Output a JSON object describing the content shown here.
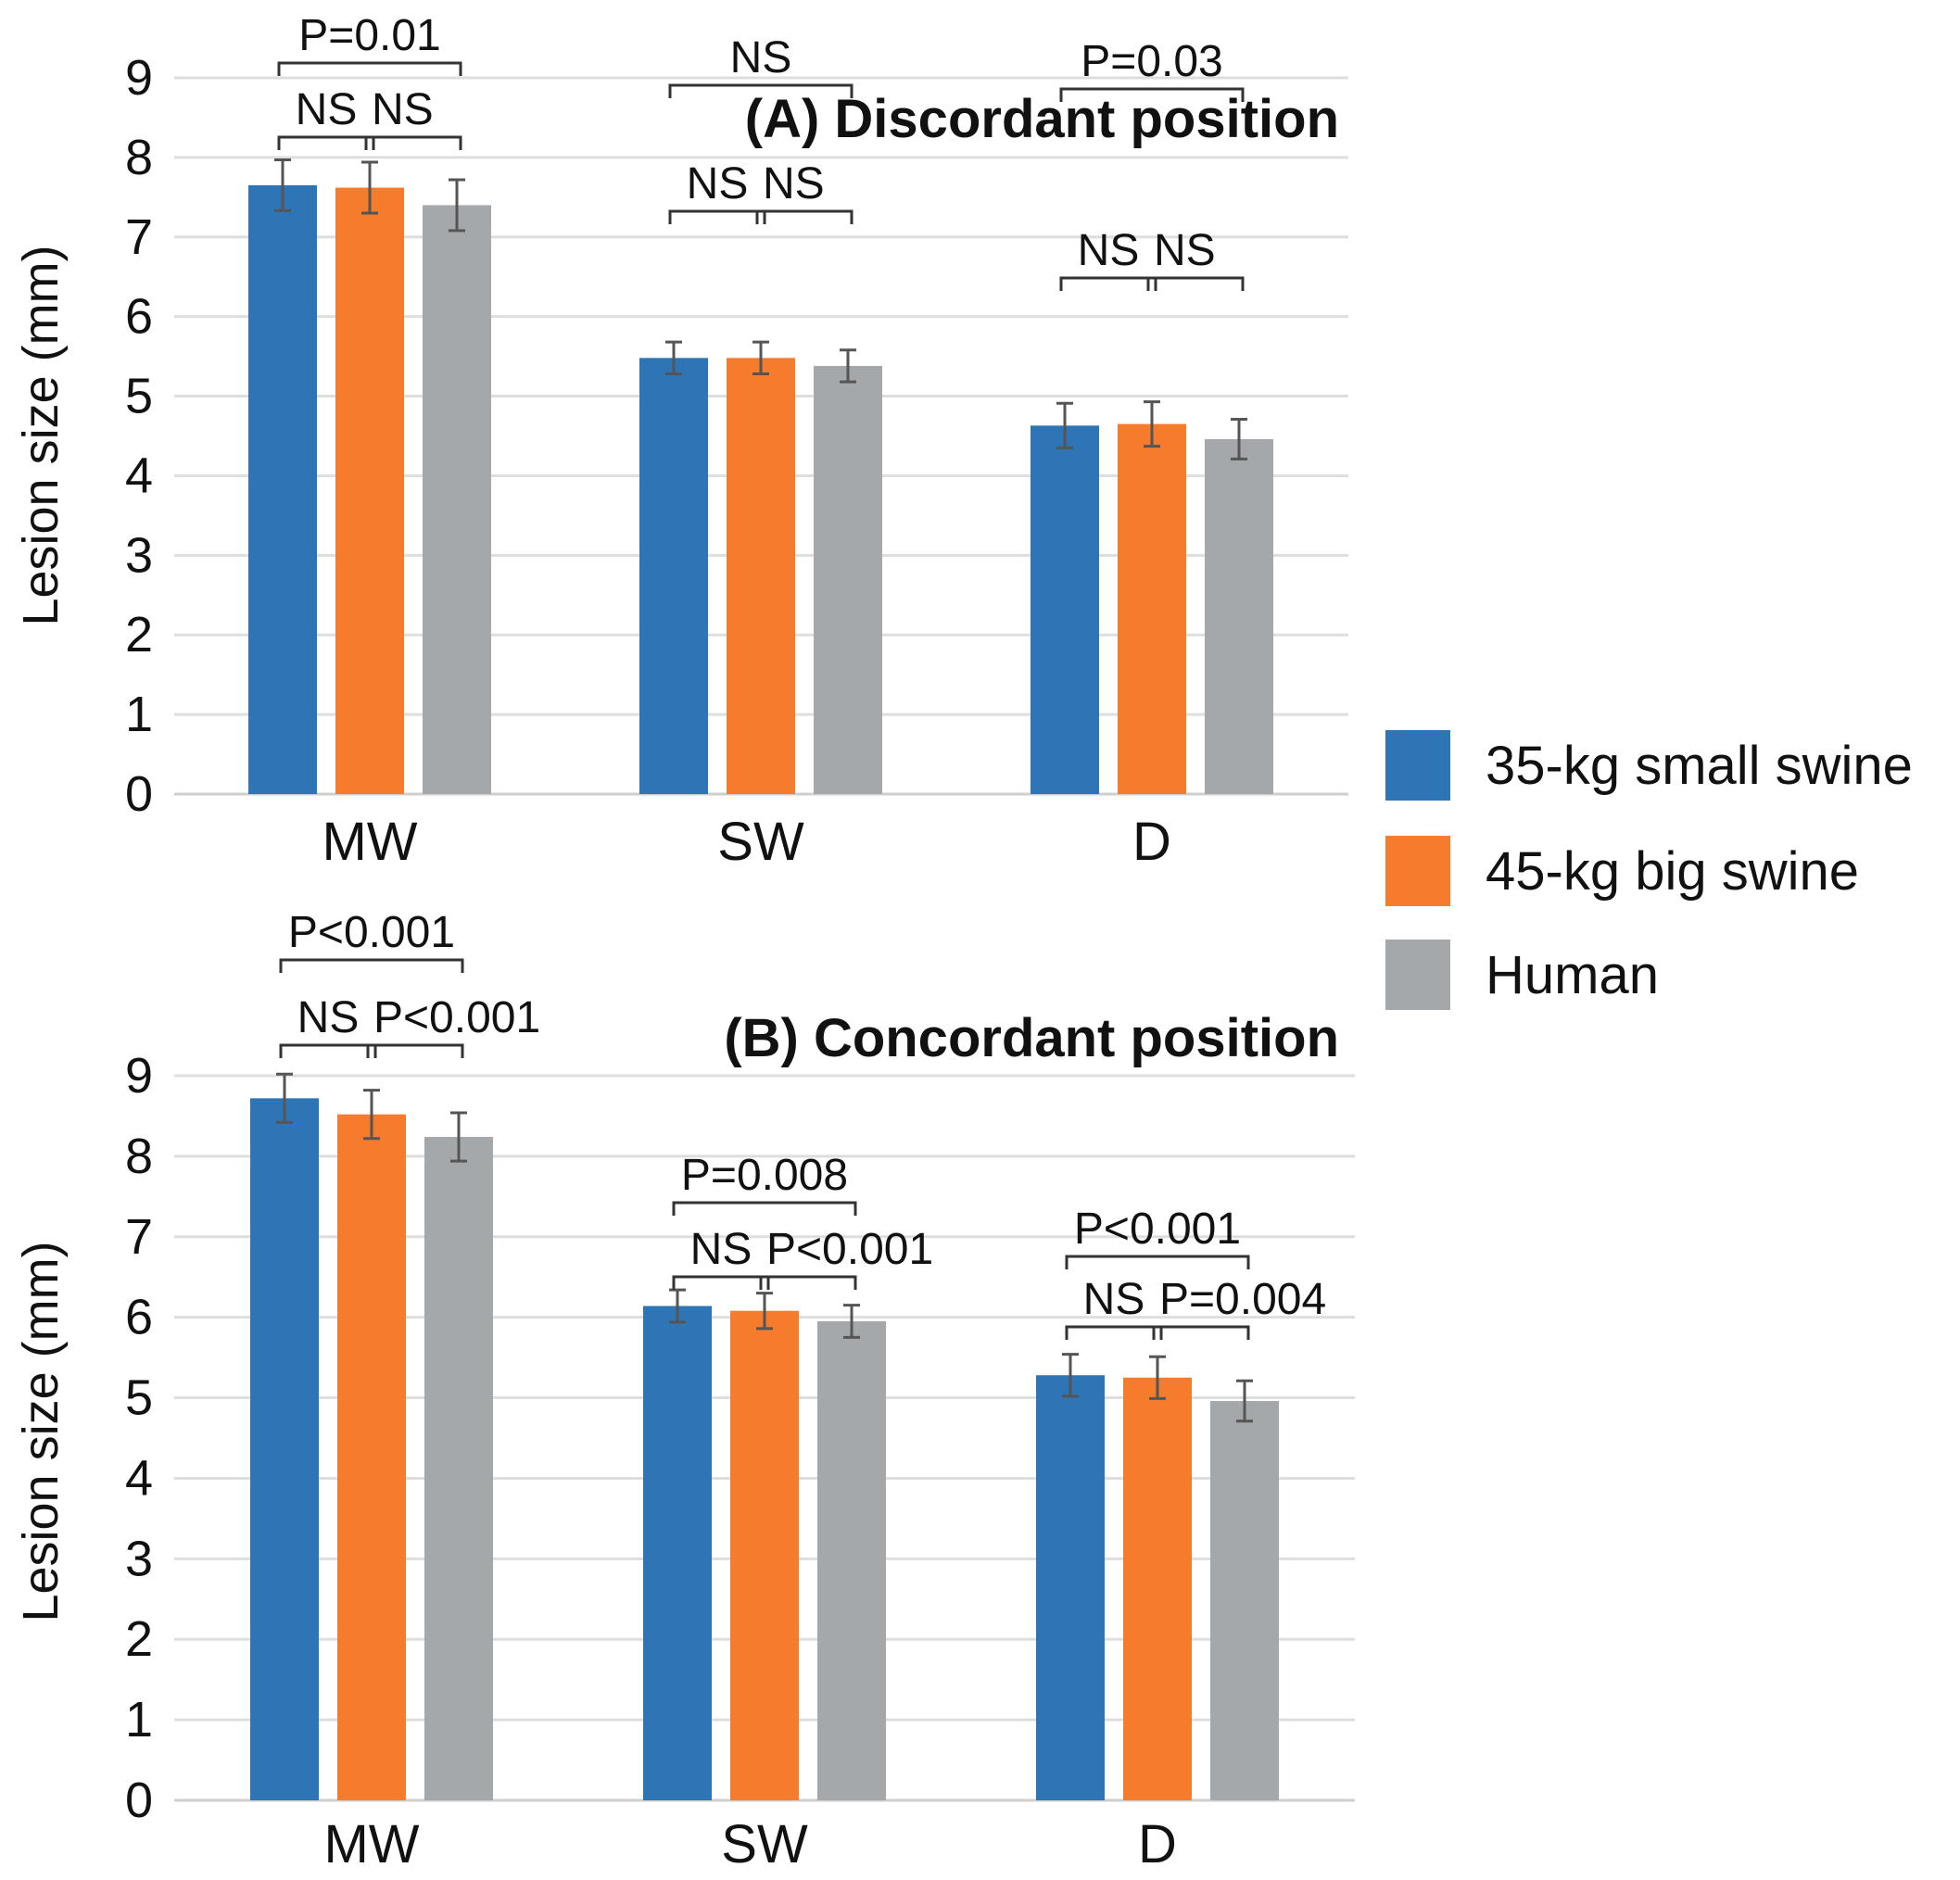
{
  "legend": [
    {
      "label": "35-kg small swine",
      "color": "#2e75b6"
    },
    {
      "label": "45-kg big swine",
      "color": "#f47c2c"
    },
    {
      "label": "Human",
      "color": "#a5a8ab"
    }
  ],
  "chart_data": [
    {
      "type": "bar",
      "title": "(A) Discordant position",
      "ylabel": "Lesion size (mm)",
      "xlabel": "",
      "ylim": [
        0,
        9
      ],
      "yticks": [
        "0",
        "1",
        "2",
        "3",
        "4",
        "5",
        "6",
        "7",
        "8",
        "9"
      ],
      "grid": true,
      "categories": [
        "MW",
        "SW",
        "D"
      ],
      "series": [
        {
          "name": "35-kg small swine",
          "values": [
            7.65,
            5.48,
            4.63
          ],
          "errors": [
            0.32,
            0.2,
            0.28
          ]
        },
        {
          "name": "45-kg big swine",
          "values": [
            7.62,
            5.48,
            4.65
          ],
          "errors": [
            0.32,
            0.2,
            0.28
          ]
        },
        {
          "name": "Human",
          "values": [
            7.4,
            5.38,
            4.46
          ],
          "errors": [
            0.32,
            0.2,
            0.25
          ]
        }
      ],
      "annotations": [
        [
          {
            "from": 0,
            "to": 1,
            "level": 0,
            "text": "NS"
          },
          {
            "from": 1,
            "to": 2,
            "level": 0,
            "text": "NS"
          },
          {
            "from": 0,
            "to": 2,
            "level": 1,
            "text": "P=0.01"
          }
        ],
        [
          {
            "from": 0,
            "to": 1,
            "level": 0,
            "text": "NS"
          },
          {
            "from": 1,
            "to": 2,
            "level": 0,
            "text": "NS"
          },
          {
            "from": 0,
            "to": 2,
            "level": 1,
            "text": "NS"
          }
        ],
        [
          {
            "from": 0,
            "to": 1,
            "level": 0,
            "text": "NS"
          },
          {
            "from": 1,
            "to": 2,
            "level": 0,
            "text": "NS"
          },
          {
            "from": 0,
            "to": 2,
            "level": 1,
            "text": "P=0.03"
          }
        ]
      ]
    },
    {
      "type": "bar",
      "title": "(B) Concordant position",
      "ylabel": "Lesion size (mm)",
      "xlabel": "",
      "ylim": [
        0,
        9
      ],
      "yticks": [
        "0",
        "1",
        "2",
        "3",
        "4",
        "5",
        "6",
        "7",
        "8",
        "9"
      ],
      "grid": true,
      "categories": [
        "MW",
        "SW",
        "D"
      ],
      "series": [
        {
          "name": "35-kg small swine",
          "values": [
            8.72,
            6.14,
            5.28
          ],
          "errors": [
            0.3,
            0.2,
            0.26
          ]
        },
        {
          "name": "45-kg big swine",
          "values": [
            8.52,
            6.08,
            5.25
          ],
          "errors": [
            0.3,
            0.22,
            0.26
          ]
        },
        {
          "name": "Human",
          "values": [
            8.24,
            5.95,
            4.96
          ],
          "errors": [
            0.3,
            0.2,
            0.25
          ]
        }
      ],
      "annotations": [
        [
          {
            "from": 0,
            "to": 1,
            "level": 0,
            "text": "NS"
          },
          {
            "from": 1,
            "to": 2,
            "level": 0,
            "text": "P<0.001"
          },
          {
            "from": 0,
            "to": 2,
            "level": 1,
            "text": "P<0.001"
          }
        ],
        [
          {
            "from": 0,
            "to": 1,
            "level": 0,
            "text": "NS"
          },
          {
            "from": 1,
            "to": 2,
            "level": 0,
            "text": "P<0.001"
          },
          {
            "from": 0,
            "to": 2,
            "level": 1,
            "text": "P=0.008"
          }
        ],
        [
          {
            "from": 0,
            "to": 1,
            "level": 0,
            "text": "NS"
          },
          {
            "from": 1,
            "to": 2,
            "level": 0,
            "text": "P=0.004"
          },
          {
            "from": 0,
            "to": 2,
            "level": 1,
            "text": "P<0.001"
          }
        ]
      ]
    }
  ]
}
